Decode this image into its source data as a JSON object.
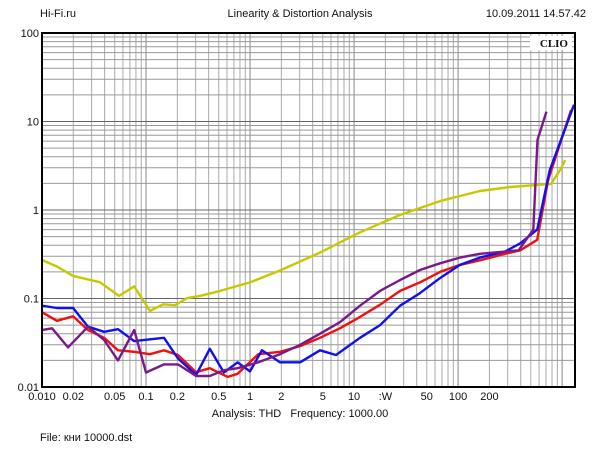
{
  "header": {
    "site": "Hi-Fi.ru",
    "title": "Linearity & Distortion Analysis",
    "timestamp": "10.09.2011 14.57.42"
  },
  "footer": {
    "analysis": "Analysis: THD   Frequency: 1000.00",
    "file": "File: кни 10000.dst"
  },
  "chart_data": {
    "type": "line",
    "title": "Linearity & Distortion Analysis",
    "brand_label": "CLIO",
    "xscale": "log",
    "yscale": "log",
    "xlim": [
      0.01,
      1330
    ],
    "ylim": [
      0.01,
      100
    ],
    "grid": true,
    "x_ticks": [
      {
        "v": 0.01,
        "label": "0.010"
      },
      {
        "v": 0.02,
        "label": "0.02"
      },
      {
        "v": 0.05,
        "label": "0.05"
      },
      {
        "v": 0.1,
        "label": "0.1"
      },
      {
        "v": 0.2,
        "label": "0.2"
      },
      {
        "v": 0.5,
        "label": "0.5"
      },
      {
        "v": 1,
        "label": "1"
      },
      {
        "v": 2,
        "label": "2"
      },
      {
        "v": 5,
        "label": "5"
      },
      {
        "v": 10,
        "label": "10"
      },
      {
        "v": 20,
        "label": ":W"
      },
      {
        "v": 50,
        "label": "50"
      },
      {
        "v": 100,
        "label": "100"
      },
      {
        "v": 200,
        "label": "200"
      }
    ],
    "y_ticks": [
      {
        "v": 100,
        "label": "100"
      },
      {
        "v": 10,
        "label": "10"
      },
      {
        "v": 1,
        "label": "1"
      },
      {
        "v": 0.1,
        "label": "0.1"
      },
      {
        "v": 0.01,
        "label": "0.01"
      }
    ],
    "series": [
      {
        "name": "yellow",
        "color": "#c8c800",
        "x": [
          0.01,
          0.0139,
          0.0199,
          0.036,
          0.055,
          0.077,
          0.109,
          0.146,
          0.19,
          0.248,
          0.33,
          0.515,
          1,
          1.94,
          4.7,
          11.4,
          27.7,
          67,
          162,
          316,
          784,
          957,
          1070
        ],
        "y": [
          0.272,
          0.23,
          0.18,
          0.153,
          0.107,
          0.137,
          0.0725,
          0.086,
          0.084,
          0.101,
          0.107,
          0.122,
          0.152,
          0.207,
          0.33,
          0.56,
          0.88,
          1.26,
          1.64,
          1.82,
          1.97,
          2.83,
          3.66
        ]
      },
      {
        "name": "red",
        "color": "#ee1111",
        "x": [
          0.01,
          0.0139,
          0.0199,
          0.0277,
          0.0395,
          0.0538,
          0.077,
          0.109,
          0.149,
          0.203,
          0.303,
          0.41,
          0.61,
          0.76,
          1.2,
          1.94,
          3.03,
          4.7,
          7.3,
          11.4,
          17.8,
          27.7,
          43,
          67,
          104,
          162,
          283,
          396,
          576,
          735,
          1220
        ],
        "y": [
          0.07,
          0.056,
          0.063,
          0.044,
          0.036,
          0.026,
          0.025,
          0.0235,
          0.026,
          0.023,
          0.0147,
          0.0163,
          0.013,
          0.0141,
          0.0235,
          0.025,
          0.029,
          0.036,
          0.046,
          0.062,
          0.085,
          0.122,
          0.152,
          0.2,
          0.24,
          0.27,
          0.32,
          0.35,
          0.46,
          2.2,
          13.5
        ]
      },
      {
        "name": "blue",
        "color": "#1111ee",
        "x": [
          0.01,
          0.0139,
          0.0199,
          0.0277,
          0.0395,
          0.0538,
          0.077,
          0.149,
          0.203,
          0.303,
          0.41,
          0.56,
          0.76,
          1,
          1.3,
          1.94,
          3.03,
          4.7,
          6.7,
          11.4,
          17.8,
          27.7,
          43,
          67,
          104,
          162,
          283,
          396,
          576,
          760,
          1300
        ],
        "y": [
          0.083,
          0.078,
          0.078,
          0.048,
          0.042,
          0.045,
          0.033,
          0.036,
          0.021,
          0.0137,
          0.027,
          0.0146,
          0.019,
          0.015,
          0.026,
          0.019,
          0.019,
          0.026,
          0.023,
          0.036,
          0.05,
          0.083,
          0.115,
          0.17,
          0.24,
          0.29,
          0.34,
          0.42,
          0.6,
          2.8,
          15.5
        ]
      },
      {
        "name": "purple",
        "color": "#7a1a8a",
        "x": [
          0.01,
          0.0125,
          0.0178,
          0.0277,
          0.0395,
          0.0538,
          0.077,
          0.1,
          0.149,
          0.203,
          0.303,
          0.41,
          0.56,
          0.76,
          1.2,
          1.94,
          3.03,
          4.7,
          7.3,
          11.4,
          17.8,
          27.7,
          43,
          67,
          104,
          162,
          382,
          529,
          580,
          706
        ],
        "y": [
          0.044,
          0.046,
          0.028,
          0.048,
          0.034,
          0.02,
          0.044,
          0.0146,
          0.018,
          0.018,
          0.0133,
          0.0133,
          0.0155,
          0.0163,
          0.019,
          0.0235,
          0.03,
          0.04,
          0.054,
          0.083,
          0.122,
          0.162,
          0.21,
          0.25,
          0.29,
          0.32,
          0.35,
          0.6,
          6.2,
          12.9
        ]
      }
    ]
  }
}
